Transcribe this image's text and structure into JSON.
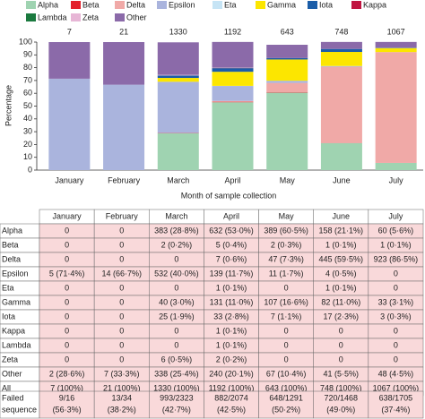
{
  "chart_data": {
    "type": "stacked_bar",
    "y_label": "Percentage",
    "x_label": "Month of sample collection",
    "categories": [
      "January",
      "February",
      "March",
      "April",
      "May",
      "June",
      "July"
    ],
    "bar_labels": [
      7,
      21,
      1330,
      1192,
      643,
      748,
      1067
    ],
    "ylim": [
      0,
      100
    ],
    "yticks": [
      0,
      10,
      20,
      30,
      40,
      50,
      60,
      70,
      80,
      90,
      100
    ],
    "series": [
      {
        "name": "Alpha",
        "color": "#9fd3b1",
        "values": [
          0,
          0,
          28.8,
          53.0,
          60.5,
          21.1,
          5.6
        ]
      },
      {
        "name": "Beta",
        "color": "#e3202b",
        "values": [
          0,
          0,
          0.2,
          0.4,
          0.3,
          0.1,
          0.1
        ]
      },
      {
        "name": "Delta",
        "color": "#f0a9a7",
        "values": [
          0,
          0,
          0,
          0.6,
          7.3,
          59.5,
          86.5
        ]
      },
      {
        "name": "Epsilon",
        "color": "#aab4dd",
        "values": [
          71.4,
          66.7,
          40.0,
          11.7,
          1.7,
          0.5,
          0
        ]
      },
      {
        "name": "Eta",
        "color": "#c6e4f5",
        "values": [
          0,
          0,
          0,
          0.1,
          0,
          0.1,
          0
        ]
      },
      {
        "name": "Gamma",
        "color": "#fce600",
        "values": [
          0,
          0,
          3.0,
          11.0,
          16.6,
          11.0,
          3.1
        ]
      },
      {
        "name": "Iota",
        "color": "#1b5da8",
        "values": [
          0,
          0,
          1.9,
          2.8,
          1.1,
          2.3,
          0.3
        ]
      },
      {
        "name": "Kappa",
        "color": "#c01541",
        "values": [
          0,
          0,
          0,
          0.1,
          0,
          0,
          0
        ]
      },
      {
        "name": "Lambda",
        "color": "#1b7a3f",
        "values": [
          0,
          0,
          0,
          0.1,
          0,
          0,
          0
        ]
      },
      {
        "name": "Zeta",
        "color": "#e7b6d6",
        "values": [
          0,
          0,
          0.5,
          0.2,
          0,
          0,
          0
        ]
      },
      {
        "name": "Other",
        "color": "#8b6aa9",
        "values": [
          28.6,
          33.3,
          25.4,
          20.1,
          10.4,
          5.5,
          4.5
        ]
      }
    ]
  },
  "table": {
    "header": [
      "January",
      "February",
      "March",
      "April",
      "May",
      "June",
      "July"
    ],
    "rows": [
      {
        "label": "Alpha",
        "cells": [
          "0",
          "0",
          "383 (28·8%)",
          "632 (53·0%)",
          "389 (60·5%)",
          "158 (21·1%)",
          "60 (5·6%)"
        ]
      },
      {
        "label": "Beta",
        "cells": [
          "0",
          "0",
          "2 (0·2%)",
          "5 (0·4%)",
          "2 (0·3%)",
          "1 (0·1%)",
          "1 (0·1%)"
        ]
      },
      {
        "label": "Delta",
        "cells": [
          "0",
          "0",
          "0",
          "7 (0·6%)",
          "47 (7·3%)",
          "445 (59·5%)",
          "923 (86·5%)"
        ]
      },
      {
        "label": "Epsilon",
        "cells": [
          "5 (71·4%)",
          "14 (66·7%)",
          "532 (40·0%)",
          "139 (11·7%)",
          "11 (1·7%)",
          "4 (0·5%)",
          "0"
        ]
      },
      {
        "label": "Eta",
        "cells": [
          "0",
          "0",
          "0",
          "1 (0·1%)",
          "0",
          "1 (0·1%)",
          "0"
        ]
      },
      {
        "label": "Gamma",
        "cells": [
          "0",
          "0",
          "40 (3·0%)",
          "131 (11·0%)",
          "107 (16·6%)",
          "82 (11·0%)",
          "33 (3·1%)"
        ]
      },
      {
        "label": "Iota",
        "cells": [
          "0",
          "0",
          "25 (1·9%)",
          "33 (2·8%)",
          "7 (1·1%)",
          "17 (2·3%)",
          "3 (0·3%)"
        ]
      },
      {
        "label": "Kappa",
        "cells": [
          "0",
          "0",
          "0",
          "1 (0·1%)",
          "0",
          "0",
          "0"
        ]
      },
      {
        "label": "Lambda",
        "cells": [
          "0",
          "0",
          "0",
          "1 (0·1%)",
          "0",
          "0",
          "0"
        ]
      },
      {
        "label": "Zeta",
        "cells": [
          "0",
          "0",
          "6 (0·5%)",
          "2 (0·2%)",
          "0",
          "0",
          "0"
        ]
      },
      {
        "label": "Other",
        "cells": [
          "2 (28·6%)",
          "7 (33·3%)",
          "338 (25·4%)",
          "240 (20·1%)",
          "67 (10·4%)",
          "41 (5·5%)",
          "48 (4·5%)"
        ]
      },
      {
        "label": "All",
        "cells": [
          "7 (100%)",
          "21 (100%)",
          "1330 (100%)",
          "1192 (100%)",
          "643 (100%)",
          "748 (100%)",
          "1067 (100%)"
        ]
      }
    ],
    "failed": {
      "label": [
        "Failed",
        "sequence"
      ],
      "cells": [
        [
          "9/16",
          "(56·3%)"
        ],
        [
          "13/34",
          "(38·2%)"
        ],
        [
          "993/2323",
          "(42·7%)"
        ],
        [
          "882/2074",
          "(42·5%)"
        ],
        [
          "648/1291",
          "(50·2%)"
        ],
        [
          "720/1468",
          "(49·0%)"
        ],
        [
          "638/1705",
          "(37·4%)"
        ]
      ]
    }
  }
}
